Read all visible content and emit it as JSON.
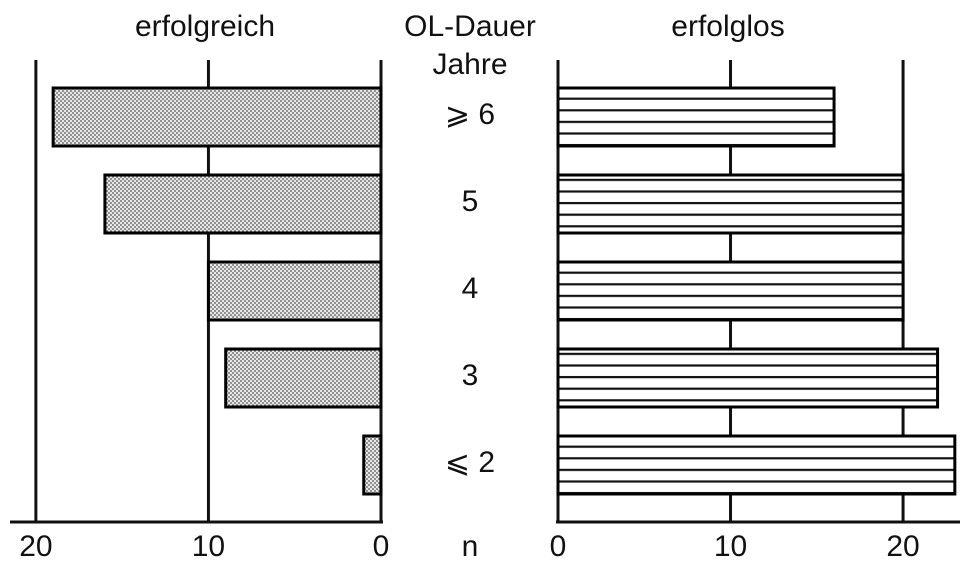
{
  "chart_data": {
    "type": "butterfly",
    "categories": [
      "⩾ 6",
      "5",
      "4",
      "3",
      "⩽ 2"
    ],
    "category_title": [
      "OL-Dauer",
      "Jahre"
    ],
    "x_label": "n",
    "xlim": [
      0,
      21.5
    ],
    "x2lim": [
      0,
      23.3
    ],
    "xticks": [
      0,
      10,
      20
    ],
    "grid": true,
    "series": [
      {
        "name": "erfolgreich",
        "pattern": "dots",
        "color": "#000000",
        "values": [
          19,
          16,
          10,
          9,
          1
        ]
      },
      {
        "name": "erfolglos",
        "pattern": "stripes",
        "color": "#000000",
        "axis": "x2",
        "values": [
          16,
          20,
          20,
          22,
          23
        ]
      }
    ]
  }
}
